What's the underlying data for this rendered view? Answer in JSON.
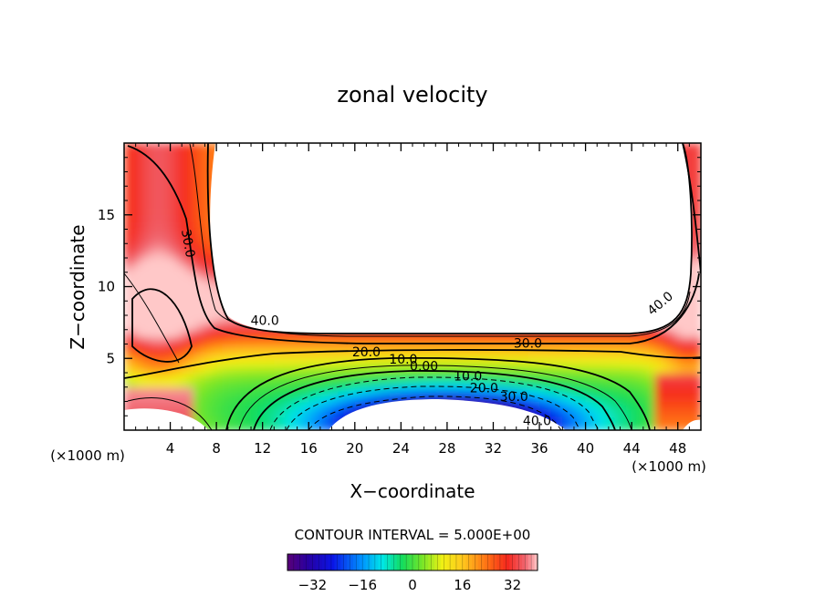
{
  "chart_data": {
    "type": "heatmap",
    "title": "zonal velocity",
    "xlabel": "X−coordinate",
    "ylabel": "Z−coordinate",
    "x_units": "(×1000 m)",
    "z_units": "(×1000 m)",
    "xlim": [
      0,
      50
    ],
    "ylim": [
      0,
      20
    ],
    "x_ticks": [
      4,
      8,
      12,
      16,
      20,
      24,
      28,
      32,
      36,
      40,
      44,
      48
    ],
    "x_tick_labels": [
      "4",
      "8",
      "12",
      "16",
      "20",
      "24",
      "28",
      "32",
      "36",
      "40",
      "44",
      "48"
    ],
    "y_ticks": [
      5,
      10,
      15
    ],
    "y_tick_labels": [
      "5",
      "10",
      "15"
    ],
    "contour_interval_label": "CONTOUR INTERVAL = 5.000E+00",
    "contour_interval": 5.0,
    "colorbar": {
      "range": [
        -40,
        40
      ],
      "tick_values": [
        -32,
        -16,
        0,
        16,
        32
      ],
      "tick_labels": [
        "−32",
        "−16",
        "0",
        "16",
        "32"
      ]
    },
    "contour_labels": [
      {
        "text": "30.0",
        "x": 5.5,
        "z": 13.0
      },
      {
        "text": "40.0",
        "x": 12.2,
        "z": 7.6
      },
      {
        "text": "40.0",
        "x": 46.5,
        "z": 8.8
      },
      {
        "text": "30.0",
        "x": 35.0,
        "z": 6.0
      },
      {
        "text": "20.0",
        "x": 21.0,
        "z": 5.4
      },
      {
        "text": "10.0",
        "x": 24.2,
        "z": 4.9
      },
      {
        "text": "0.00",
        "x": 26.0,
        "z": 4.4
      },
      {
        "text": "10.0",
        "x": 29.8,
        "z": 3.7
      },
      {
        "text": "20.0",
        "x": 31.2,
        "z": 2.9
      },
      {
        "text": "30.0",
        "x": 33.8,
        "z": 2.3
      },
      {
        "text": "40.0",
        "x": 35.8,
        "z": 0.6
      }
    ],
    "features": [
      {
        "name": "upper undefined region",
        "x_range": [
          7.5,
          49.0
        ],
        "z_range": [
          6.5,
          20.0
        ]
      },
      {
        "name": "eastward jet core (max > 40)",
        "x_range": [
          6,
          50
        ],
        "z_range": [
          5.5,
          20
        ]
      },
      {
        "name": "westward jet core (min < -40)",
        "x_range": [
          17,
          39
        ],
        "z_range": [
          0,
          1.5
        ]
      },
      {
        "name": "lower-left undefined region",
        "x_range": [
          0,
          7
        ],
        "z_range": [
          0,
          0.3
        ]
      }
    ]
  }
}
